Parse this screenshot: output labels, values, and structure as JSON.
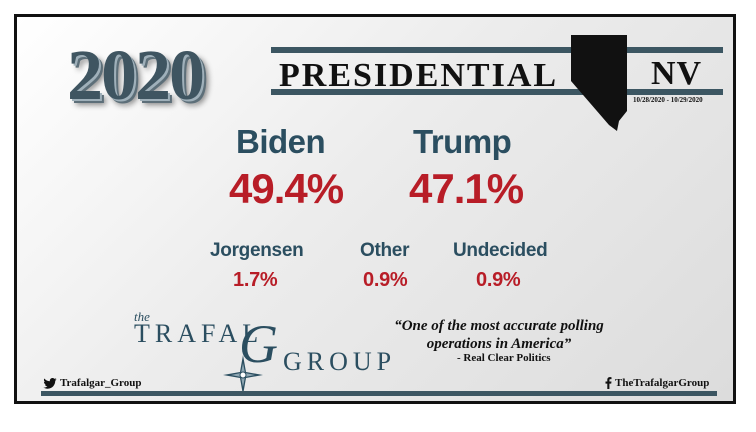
{
  "header": {
    "year": "2020",
    "title": "PRESIDENTIAL",
    "state": "NV",
    "date_range": "10/28/2020 - 10/29/2020"
  },
  "main_candidates": [
    {
      "name": "Biden",
      "percent": "49.4%"
    },
    {
      "name": "Trump",
      "percent": "47.1%"
    }
  ],
  "minor_results": [
    {
      "name": "Jorgensen",
      "percent": "1.7%"
    },
    {
      "name": "Other",
      "percent": "0.9%"
    },
    {
      "name": "Undecided",
      "percent": "0.9%"
    }
  ],
  "logo": {
    "the": "the",
    "line1": "TRAFAL",
    "g_letter": "G",
    "line2": "GROUP"
  },
  "quote": {
    "text": "“One of the most accurate polling operations in America”",
    "source": "- Real Clear Politics"
  },
  "social": {
    "twitter": "Trafalgar_Group",
    "facebook": "TheTrafalgarGroup"
  },
  "colors": {
    "name_blue": "#2b4e60",
    "percent_red": "#b81d27",
    "bar_slate": "#3c5662"
  }
}
